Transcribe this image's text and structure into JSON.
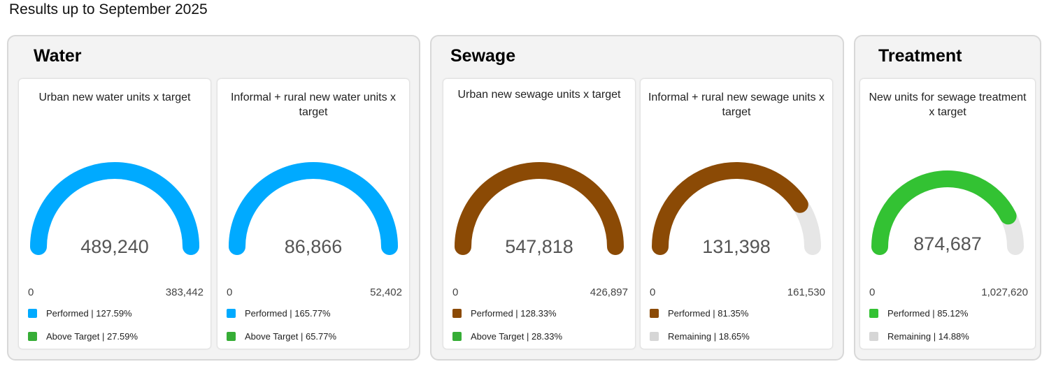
{
  "title": "Results up to September 2025",
  "colors": {
    "water": "#00aaff",
    "sewage": "#8b4a05",
    "treatment": "#33c233",
    "above_target": "#36ad36",
    "remaining": "#e6e6e6",
    "remaining_swatch": "#d6d6d6"
  },
  "panels": [
    {
      "title": "Water"
    },
    {
      "title": "Sewage"
    },
    {
      "title": "Treatment"
    }
  ],
  "chart_data": [
    {
      "type": "gauge",
      "title": "Urban new water units x target",
      "value": 489240,
      "value_label": "489,240",
      "min": 0,
      "min_label": "0",
      "target": 383442,
      "target_label": "383,442",
      "fill_fraction": 1.0,
      "color": "#00aaff",
      "legend": [
        {
          "label": "Performed | 127.59%",
          "color": "#00aaff"
        },
        {
          "label": "Above Target | 27.59%",
          "color": "#36ad36"
        }
      ]
    },
    {
      "type": "gauge",
      "title": "Informal + rural new water units x target",
      "value": 86866,
      "value_label": "86,866",
      "min": 0,
      "min_label": "0",
      "target": 52402,
      "target_label": "52,402",
      "fill_fraction": 1.0,
      "color": "#00aaff",
      "legend": [
        {
          "label": "Performed | 165.77%",
          "color": "#00aaff"
        },
        {
          "label": "Above Target | 65.77%",
          "color": "#36ad36"
        }
      ]
    },
    {
      "type": "gauge",
      "title": "Urban new sewage units x target",
      "value": 547818,
      "value_label": "547,818",
      "min": 0,
      "min_label": "0",
      "target": 426897,
      "target_label": "426,897",
      "fill_fraction": 1.0,
      "color": "#8b4a05",
      "legend": [
        {
          "label": "Performed | 128.33%",
          "color": "#8b4a05"
        },
        {
          "label": "Above Target | 28.33%",
          "color": "#36ad36"
        }
      ]
    },
    {
      "type": "gauge",
      "title": "Informal + rural new sewage units x target",
      "value": 131398,
      "value_label": "131,398",
      "min": 0,
      "min_label": "0",
      "target": 161530,
      "target_label": "161,530",
      "fill_fraction": 0.8135,
      "color": "#8b4a05",
      "legend": [
        {
          "label": "Performed | 81.35%",
          "color": "#8b4a05"
        },
        {
          "label": "Remaining | 18.65%",
          "color": "#d6d6d6"
        }
      ]
    },
    {
      "type": "gauge",
      "title": "New units for sewage treatment x target",
      "value": 874687,
      "value_label": "874,687",
      "min": 0,
      "min_label": "0",
      "target": 1027620,
      "target_label": "1,027,620",
      "fill_fraction": 0.8512,
      "color": "#33c233",
      "legend": [
        {
          "label": "Performed | 85.12%",
          "color": "#33c233"
        },
        {
          "label": "Remaining | 14.88%",
          "color": "#d6d6d6"
        }
      ]
    }
  ]
}
